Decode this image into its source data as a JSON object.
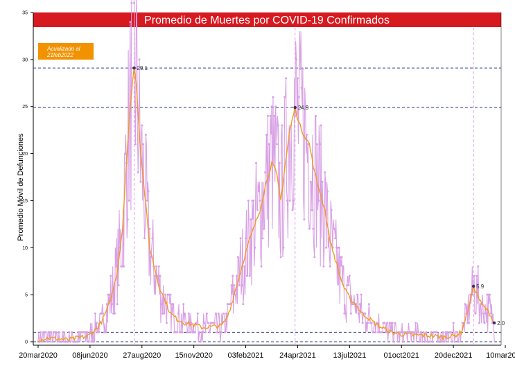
{
  "chart_data": {
    "type": "line",
    "title": "Promedio de Muertes por COVID-19 Confirmados",
    "ylabel": "Promedio Móvil de Defunciones",
    "xlabel": "",
    "badge": {
      "line1": "Acualizado al",
      "line2": "21feb2022"
    },
    "x_range": [
      "2020-03-20",
      "2022-03-10"
    ],
    "ylim": [
      0,
      35
    ],
    "y_ticks": [
      0,
      5,
      10,
      15,
      20,
      25,
      30,
      35
    ],
    "x_ticks": [
      {
        "date": "2020-03-20",
        "label": "20mar2020"
      },
      {
        "date": "2020-06-08",
        "label": "08jun2020"
      },
      {
        "date": "2020-08-27",
        "label": "27aug2020"
      },
      {
        "date": "2020-11-15",
        "label": "15nov2020"
      },
      {
        "date": "2021-02-03",
        "label": "03feb2021"
      },
      {
        "date": "2021-04-24",
        "label": "24apr2021"
      },
      {
        "date": "2021-07-13",
        "label": "13jul2021"
      },
      {
        "date": "2021-10-01",
        "label": "01oct2021"
      },
      {
        "date": "2021-12-20",
        "label": "20dec2021"
      },
      {
        "date": "2022-03-10",
        "label": "10mar2022"
      }
    ],
    "hlines": [
      29.1,
      24.9,
      1.0,
      0.0
    ],
    "vlines": [
      "2020-08-15",
      "2021-04-20",
      "2022-01-20"
    ],
    "colors": {
      "title_bg": "#d71920",
      "daily": "#d9a0e6",
      "moving_avg": "#f39a1e",
      "ref_line": "#2e3f8c",
      "vline": "#e59bf0",
      "badge_bg": "#f39200",
      "peak_marker": "#3a2a6e"
    },
    "series": [
      {
        "name": "",
        "role": "moving_avg",
        "points": [
          [
            "2020-03-20",
            0.2
          ],
          [
            "2020-04-05",
            0.4
          ],
          [
            "2020-04-20",
            0.3
          ],
          [
            "2020-05-05",
            0.2
          ],
          [
            "2020-05-20",
            0.4
          ],
          [
            "2020-06-05",
            0.6
          ],
          [
            "2020-06-15",
            1.2
          ],
          [
            "2020-06-25",
            2.0
          ],
          [
            "2020-07-05",
            3.5
          ],
          [
            "2020-07-12",
            5.0
          ],
          [
            "2020-07-20",
            7.5
          ],
          [
            "2020-07-28",
            12.0
          ],
          [
            "2020-08-02",
            18.0
          ],
          [
            "2020-08-07",
            23.0
          ],
          [
            "2020-08-12",
            27.5
          ],
          [
            "2020-08-15",
            29.1
          ],
          [
            "2020-08-19",
            27.0
          ],
          [
            "2020-08-23",
            22.0
          ],
          [
            "2020-08-28",
            18.0
          ],
          [
            "2020-09-02",
            14.5
          ],
          [
            "2020-09-08",
            10.0
          ],
          [
            "2020-09-15",
            8.0
          ],
          [
            "2020-09-22",
            6.0
          ],
          [
            "2020-10-01",
            4.5
          ],
          [
            "2020-10-10",
            3.0
          ],
          [
            "2020-10-20",
            2.4
          ],
          [
            "2020-11-01",
            2.0
          ],
          [
            "2020-11-15",
            1.8
          ],
          [
            "2020-11-30",
            1.5
          ],
          [
            "2020-12-15",
            1.6
          ],
          [
            "2020-12-28",
            1.7
          ],
          [
            "2021-01-05",
            2.5
          ],
          [
            "2021-01-12",
            4.0
          ],
          [
            "2021-01-20",
            6.0
          ],
          [
            "2021-01-28",
            8.0
          ],
          [
            "2021-02-05",
            10.0
          ],
          [
            "2021-02-15",
            12.0
          ],
          [
            "2021-02-25",
            14.0
          ],
          [
            "2021-03-05",
            16.5
          ],
          [
            "2021-03-15",
            19.0
          ],
          [
            "2021-03-22",
            18.0
          ],
          [
            "2021-03-29",
            15.0
          ],
          [
            "2021-04-05",
            19.0
          ],
          [
            "2021-04-12",
            22.5
          ],
          [
            "2021-04-20",
            24.9
          ],
          [
            "2021-04-27",
            23.0
          ],
          [
            "2021-05-04",
            22.0
          ],
          [
            "2021-05-12",
            21.0
          ],
          [
            "2021-05-20",
            18.0
          ],
          [
            "2021-05-28",
            16.0
          ],
          [
            "2021-06-05",
            14.0
          ],
          [
            "2021-06-12",
            11.0
          ],
          [
            "2021-06-20",
            9.0
          ],
          [
            "2021-06-28",
            7.0
          ],
          [
            "2021-07-06",
            5.5
          ],
          [
            "2021-07-14",
            4.5
          ],
          [
            "2021-07-22",
            4.0
          ],
          [
            "2021-08-01",
            3.0
          ],
          [
            "2021-08-10",
            2.6
          ],
          [
            "2021-08-20",
            2.0
          ],
          [
            "2021-09-01",
            1.5
          ],
          [
            "2021-09-15",
            1.0
          ],
          [
            "2021-10-01",
            0.8
          ],
          [
            "2021-10-15",
            0.7
          ],
          [
            "2021-11-01",
            0.7
          ],
          [
            "2021-11-20",
            0.6
          ],
          [
            "2021-12-05",
            0.5
          ],
          [
            "2021-12-20",
            0.6
          ],
          [
            "2022-01-01",
            1.0
          ],
          [
            "2022-01-08",
            2.5
          ],
          [
            "2022-01-14",
            4.0
          ],
          [
            "2022-01-20",
            5.9
          ],
          [
            "2022-01-26",
            5.0
          ],
          [
            "2022-02-01",
            4.0
          ],
          [
            "2022-02-08",
            3.5
          ],
          [
            "2022-02-14",
            3.0
          ],
          [
            "2022-02-21",
            2.0
          ]
        ]
      }
    ],
    "annotations": [
      {
        "date": "2020-08-15",
        "value": 29.1,
        "label": "29.1"
      },
      {
        "date": "2021-04-20",
        "value": 24.9,
        "label": "24.9"
      },
      {
        "date": "2022-01-20",
        "value": 5.9,
        "label": "5.9"
      },
      {
        "date": "2022-02-21",
        "value": 2.0,
        "label": "2.0"
      }
    ]
  }
}
